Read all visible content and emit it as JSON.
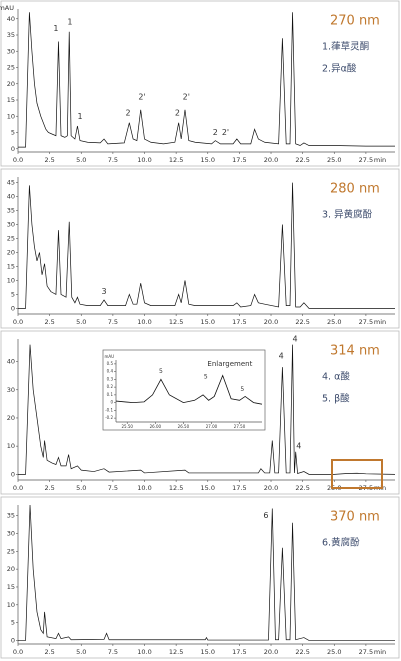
{
  "chart_data": [
    {
      "type": "line",
      "wavelength": "270 nm",
      "notes": [
        "1.葎草灵酮",
        "2.异α酸"
      ],
      "ylabel": "mAU",
      "xlabel": "min",
      "x": [
        0,
        0.6,
        0.9,
        1.1,
        1.3,
        1.5,
        1.8,
        2.0,
        2.2,
        2.4,
        2.7,
        3.0,
        3.2,
        3.4,
        3.7,
        3.9,
        4.05,
        4.2,
        4.5,
        4.7,
        4.9,
        5.5,
        6.5,
        6.8,
        7.1,
        8.4,
        8.8,
        9.1,
        9.4,
        9.7,
        10.0,
        10.5,
        11.5,
        12.4,
        12.7,
        12.9,
        13.2,
        13.5,
        14.0,
        15.3,
        15.6,
        16.0,
        17.0,
        17.3,
        17.6,
        18.4,
        18.7,
        19.0,
        19.5,
        20.6,
        20.9,
        21.2,
        21.5,
        21.7,
        21.95,
        22.3,
        22.6,
        23.0,
        25.0,
        27.5,
        29.8
      ],
      "values": [
        0.5,
        0.5,
        42,
        30,
        20,
        14,
        10,
        8,
        6,
        5,
        4.5,
        4,
        33,
        4,
        3.5,
        4,
        36,
        4,
        3,
        7,
        2.5,
        2,
        1.8,
        3,
        1.5,
        1.8,
        8,
        3,
        2.5,
        12,
        3,
        2,
        1.5,
        2,
        8,
        3,
        12,
        2.5,
        2,
        1.5,
        2.5,
        1.5,
        1.5,
        3,
        1.5,
        1.5,
        6,
        3,
        2,
        1.5,
        34,
        1.5,
        1.5,
        42,
        1.5,
        1,
        1.8,
        1,
        1,
        0.8,
        0.8
      ],
      "color": "#111111",
      "xlim": [
        0,
        29.8
      ],
      "ylim": [
        -1,
        43
      ],
      "yticks": [
        0,
        5,
        10,
        15,
        20,
        25,
        30,
        35,
        40
      ],
      "xticks": [
        {
          "value": 0,
          "label": "0.0"
        },
        2.5,
        {
          "value": 5,
          "label": "5.0"
        },
        7.5,
        {
          "value": 10,
          "label": "10.0"
        },
        12.5,
        {
          "value": 15,
          "label": "15.0"
        },
        17.5,
        {
          "value": 20,
          "label": "20.0"
        },
        22.5,
        {
          "value": 25,
          "label": "25.0"
        },
        27.5
      ],
      "annotations": [
        {
          "text": "1",
          "x": 3.0,
          "y": 37
        },
        {
          "text": "1",
          "x": 4.1,
          "y": 39
        },
        {
          "text": "1",
          "x": 4.9,
          "y": 10
        },
        {
          "text": "2",
          "x": 8.7,
          "y": 11
        },
        {
          "text": "2'",
          "x": 9.8,
          "y": 16
        },
        {
          "text": "2",
          "x": 12.6,
          "y": 11
        },
        {
          "text": "2'",
          "x": 13.3,
          "y": 16
        },
        {
          "text": "2",
          "x": 15.6,
          "y": 5
        },
        {
          "text": "2'",
          "x": 16.4,
          "y": 5
        }
      ]
    },
    {
      "type": "line",
      "wavelength": "280 nm",
      "notes": [
        "3. 异黄腐酚"
      ],
      "xlabel": "min",
      "x": [
        0,
        0.6,
        0.9,
        1.1,
        1.3,
        1.5,
        1.7,
        1.9,
        2.1,
        2.3,
        2.6,
        3.0,
        3.2,
        3.4,
        3.8,
        4.05,
        4.25,
        4.5,
        4.7,
        4.9,
        5.5,
        6.5,
        6.8,
        7.1,
        8.5,
        8.8,
        9.1,
        9.4,
        9.7,
        10.0,
        10.5,
        12.4,
        12.7,
        12.9,
        13.2,
        13.5,
        14.0,
        17.0,
        17.3,
        17.6,
        18.4,
        18.7,
        19.0,
        19.5,
        20.6,
        20.9,
        21.2,
        21.5,
        21.7,
        21.95,
        22.3,
        22.6,
        23.0,
        25.0,
        29.8
      ],
      "values": [
        0,
        0,
        44,
        30,
        22,
        17,
        20,
        12,
        16,
        8,
        6,
        5,
        28,
        5,
        4,
        31,
        4,
        2,
        4,
        1.5,
        1,
        1,
        3,
        1,
        1,
        5,
        1.5,
        1.5,
        9,
        2,
        1,
        1,
        5,
        2,
        10,
        1.5,
        1,
        1,
        2,
        0.5,
        1,
        5,
        2,
        1.5,
        0.5,
        30,
        1,
        1,
        45,
        0.5,
        0.5,
        2,
        0,
        0,
        0
      ],
      "color": "#111111",
      "xlim": [
        0,
        29.8
      ],
      "ylim": [
        -2,
        47
      ],
      "yticks": [
        0,
        5,
        10,
        15,
        20,
        25,
        30,
        35,
        40,
        45
      ],
      "xticks": [
        {
          "value": 0,
          "label": "0.0"
        },
        2.5,
        {
          "value": 5,
          "label": "5.0"
        },
        7.5,
        {
          "value": 10,
          "label": "10.0"
        },
        12.5,
        {
          "value": 15,
          "label": "15.0"
        },
        17.5,
        {
          "value": 20,
          "label": "20.0"
        },
        22.5,
        {
          "value": 25,
          "label": "25.0"
        },
        27.5
      ],
      "annotations": [
        {
          "text": "3",
          "x": 6.8,
          "y": 6
        }
      ]
    },
    {
      "type": "line",
      "wavelength": "314 nm",
      "notes": [
        "4. α酸",
        "5. β酸"
      ],
      "xlabel": "min",
      "x": [
        0,
        0.6,
        0.95,
        1.2,
        1.5,
        1.8,
        2.0,
        2.1,
        2.3,
        2.7,
        3.0,
        3.2,
        3.4,
        3.8,
        4.0,
        4.2,
        4.7,
        5.0,
        6.0,
        6.8,
        7.2,
        9.7,
        10.0,
        13.2,
        13.5,
        19.0,
        19.2,
        19.5,
        19.9,
        20.1,
        20.3,
        20.6,
        20.9,
        21.2,
        21.5,
        21.7,
        21.85,
        21.95,
        22.1,
        22.6,
        23.0,
        25.0,
        26.0,
        26.8,
        27.5,
        29.8
      ],
      "values": [
        0,
        0,
        46,
        30,
        20,
        10,
        6,
        12,
        5,
        4,
        3.5,
        6,
        3,
        3,
        7,
        2,
        3,
        1.5,
        1,
        2,
        0.8,
        1.5,
        0.5,
        1.5,
        0.5,
        0.5,
        2,
        0.5,
        0.5,
        12,
        0.5,
        0.5,
        38,
        0.5,
        0.5,
        46,
        0.5,
        8,
        0.3,
        1,
        0,
        0,
        0.3,
        0.4,
        0.2,
        0
      ],
      "color": "#111111",
      "xlim": [
        0,
        29.8
      ],
      "ylim": [
        -2,
        48
      ],
      "yticks": [
        0,
        10,
        20,
        30,
        40
      ],
      "xticks": [
        {
          "value": 0,
          "label": "0.0"
        },
        2.5,
        {
          "value": 5,
          "label": "5.0"
        },
        7.5,
        {
          "value": 10,
          "label": "10.0"
        },
        12.5,
        {
          "value": 15,
          "label": "15.0"
        },
        17.5,
        {
          "value": 20,
          "label": "20.0"
        },
        22.5,
        {
          "value": 25,
          "label": "25.0"
        },
        27.5
      ],
      "annotations": [
        {
          "text": "4",
          "x": 20.8,
          "y": 42
        },
        {
          "text": "4",
          "x": 21.9,
          "y": 48
        },
        {
          "text": "4",
          "x": 22.2,
          "y": 10
        }
      ],
      "inset": {
        "type": "line",
        "title": "Enlargement",
        "ylabel": "mAU",
        "x": [
          25.3,
          25.6,
          25.8,
          25.95,
          26.1,
          26.25,
          26.5,
          26.7,
          26.85,
          26.95,
          27.05,
          27.2,
          27.35,
          27.5,
          27.6,
          27.75,
          27.9
        ],
        "values": [
          0.02,
          0,
          0.01,
          0.1,
          0.3,
          0.1,
          0,
          0.03,
          0.1,
          0.03,
          0.08,
          0.35,
          0.05,
          0.03,
          0.08,
          0,
          -0.02
        ],
        "color": "#111111",
        "xlim": [
          25.3,
          27.9
        ],
        "ylim": [
          -0.25,
          0.55
        ],
        "yticks": [
          0.5,
          0.4,
          0.3,
          0.2,
          0.1,
          0,
          -0.1,
          -0.2
        ],
        "xticks": [
          {
            "value": 25.5,
            "label": "25.50"
          },
          {
            "value": 26,
            "label": "26.00"
          },
          {
            "value": 26.5,
            "label": "26.50"
          },
          {
            "value": 27,
            "label": "27.00"
          },
          {
            "value": 27.5,
            "label": "27.50"
          }
        ],
        "annotations": [
          {
            "text": "5",
            "x": 26.1,
            "y": 0.4
          },
          {
            "text": "5",
            "x": 26.9,
            "y": 0.33
          },
          {
            "text": "5",
            "x": 27.55,
            "y": 0.17
          }
        ]
      }
    },
    {
      "type": "line",
      "wavelength": "370 nm",
      "notes": [
        "6.黄腐酚"
      ],
      "xlabel": "min",
      "x": [
        0,
        0.6,
        0.95,
        1.2,
        1.5,
        1.8,
        2.0,
        2.1,
        2.3,
        3.0,
        3.2,
        3.4,
        4.0,
        4.2,
        6.8,
        7.0,
        7.2,
        14.8,
        14.9,
        15.0,
        19.8,
        20.1,
        20.35,
        20.6,
        20.9,
        21.2,
        21.5,
        21.7,
        21.95,
        22.6,
        23.0,
        29.8
      ],
      "values": [
        0,
        0,
        38,
        20,
        8,
        3,
        2,
        8,
        1,
        0.5,
        2,
        0.5,
        1,
        0.2,
        0.3,
        2,
        0.2,
        0.2,
        0.8,
        0.1,
        0.1,
        37,
        0.2,
        0.2,
        26,
        0.2,
        0.2,
        33,
        0.2,
        0.8,
        0,
        0
      ],
      "color": "#111111",
      "xlim": [
        0,
        29.8
      ],
      "ylim": [
        -1,
        38
      ],
      "yticks": [
        0,
        5,
        10,
        15,
        20,
        25,
        30,
        35
      ],
      "xticks": [
        {
          "value": 0,
          "label": "0.0"
        },
        2.5,
        {
          "value": 5,
          "label": "5.0"
        },
        7.5,
        {
          "value": 10,
          "label": "10.0"
        },
        12.5,
        {
          "value": 15,
          "label": "15.0"
        },
        17.5,
        {
          "value": 20,
          "label": "20.0"
        },
        22.5,
        {
          "value": 25,
          "label": "25.0"
        },
        27.5
      ],
      "annotations": [
        {
          "text": "6",
          "x": 19.6,
          "y": 35
        }
      ]
    }
  ]
}
